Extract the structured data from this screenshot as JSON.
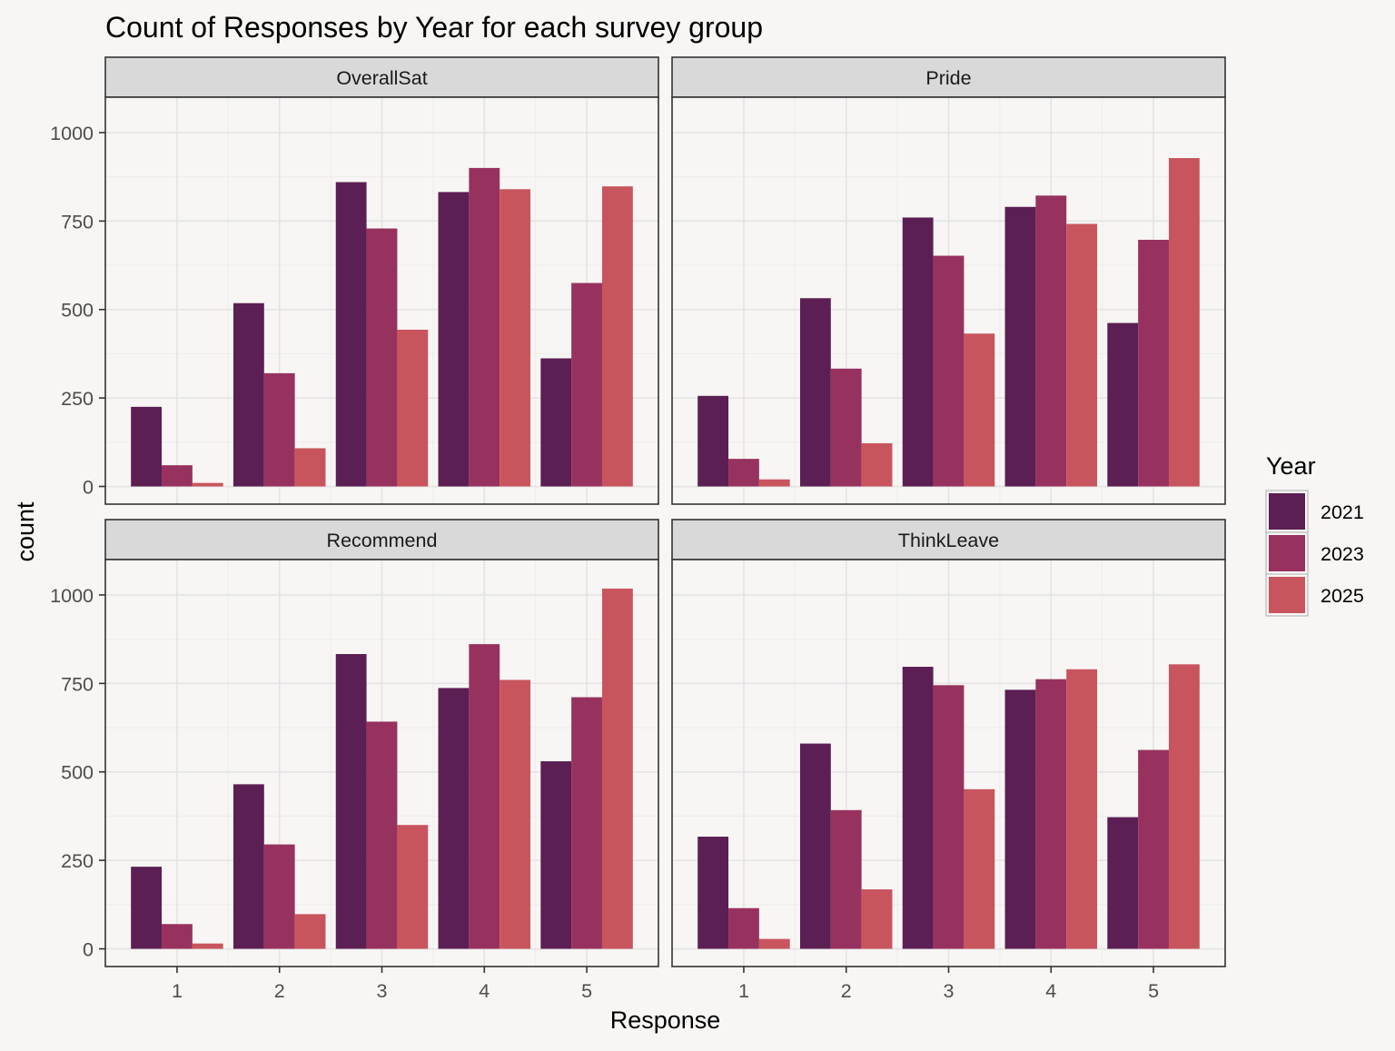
{
  "chart_data": {
    "type": "bar",
    "title": "Count of Responses by Year for each survey group",
    "xlabel": "Response",
    "ylabel": "count",
    "ylim": [
      -50,
      1100
    ],
    "yticks": [
      0,
      250,
      500,
      750,
      1000
    ],
    "categories": [
      "1",
      "2",
      "3",
      "4",
      "5"
    ],
    "grid": true,
    "legend": {
      "title": "Year",
      "position": "right",
      "entries": [
        "2021",
        "2023",
        "2025"
      ]
    },
    "colors": [
      "#5b1f53",
      "#97325e",
      "#c8555e"
    ],
    "facets": [
      {
        "name": "OverallSat",
        "series": [
          {
            "name": "2021",
            "values": [
              225,
              518,
              860,
              832,
              362
            ]
          },
          {
            "name": "2023",
            "values": [
              60,
              320,
              729,
              900,
              575
            ]
          },
          {
            "name": "2025",
            "values": [
              10,
              108,
              443,
              840,
              848
            ]
          }
        ]
      },
      {
        "name": "Pride",
        "series": [
          {
            "name": "2021",
            "values": [
              256,
              532,
              760,
              790,
              462
            ]
          },
          {
            "name": "2023",
            "values": [
              78,
              333,
              652,
              822,
              697
            ]
          },
          {
            "name": "2025",
            "values": [
              20,
              122,
              432,
              742,
              928
            ]
          }
        ]
      },
      {
        "name": "Recommend",
        "series": [
          {
            "name": "2021",
            "values": [
              232,
              465,
              833,
              737,
              530
            ]
          },
          {
            "name": "2023",
            "values": [
              70,
              295,
              642,
              861,
              711
            ]
          },
          {
            "name": "2025",
            "values": [
              15,
              98,
              350,
              760,
              1018
            ]
          }
        ]
      },
      {
        "name": "ThinkLeave",
        "series": [
          {
            "name": "2021",
            "values": [
              317,
              580,
              797,
              732,
              372
            ]
          },
          {
            "name": "2023",
            "values": [
              115,
              392,
              745,
              762,
              562
            ]
          },
          {
            "name": "2025",
            "values": [
              28,
              168,
              451,
              790,
              804
            ]
          }
        ]
      }
    ]
  }
}
